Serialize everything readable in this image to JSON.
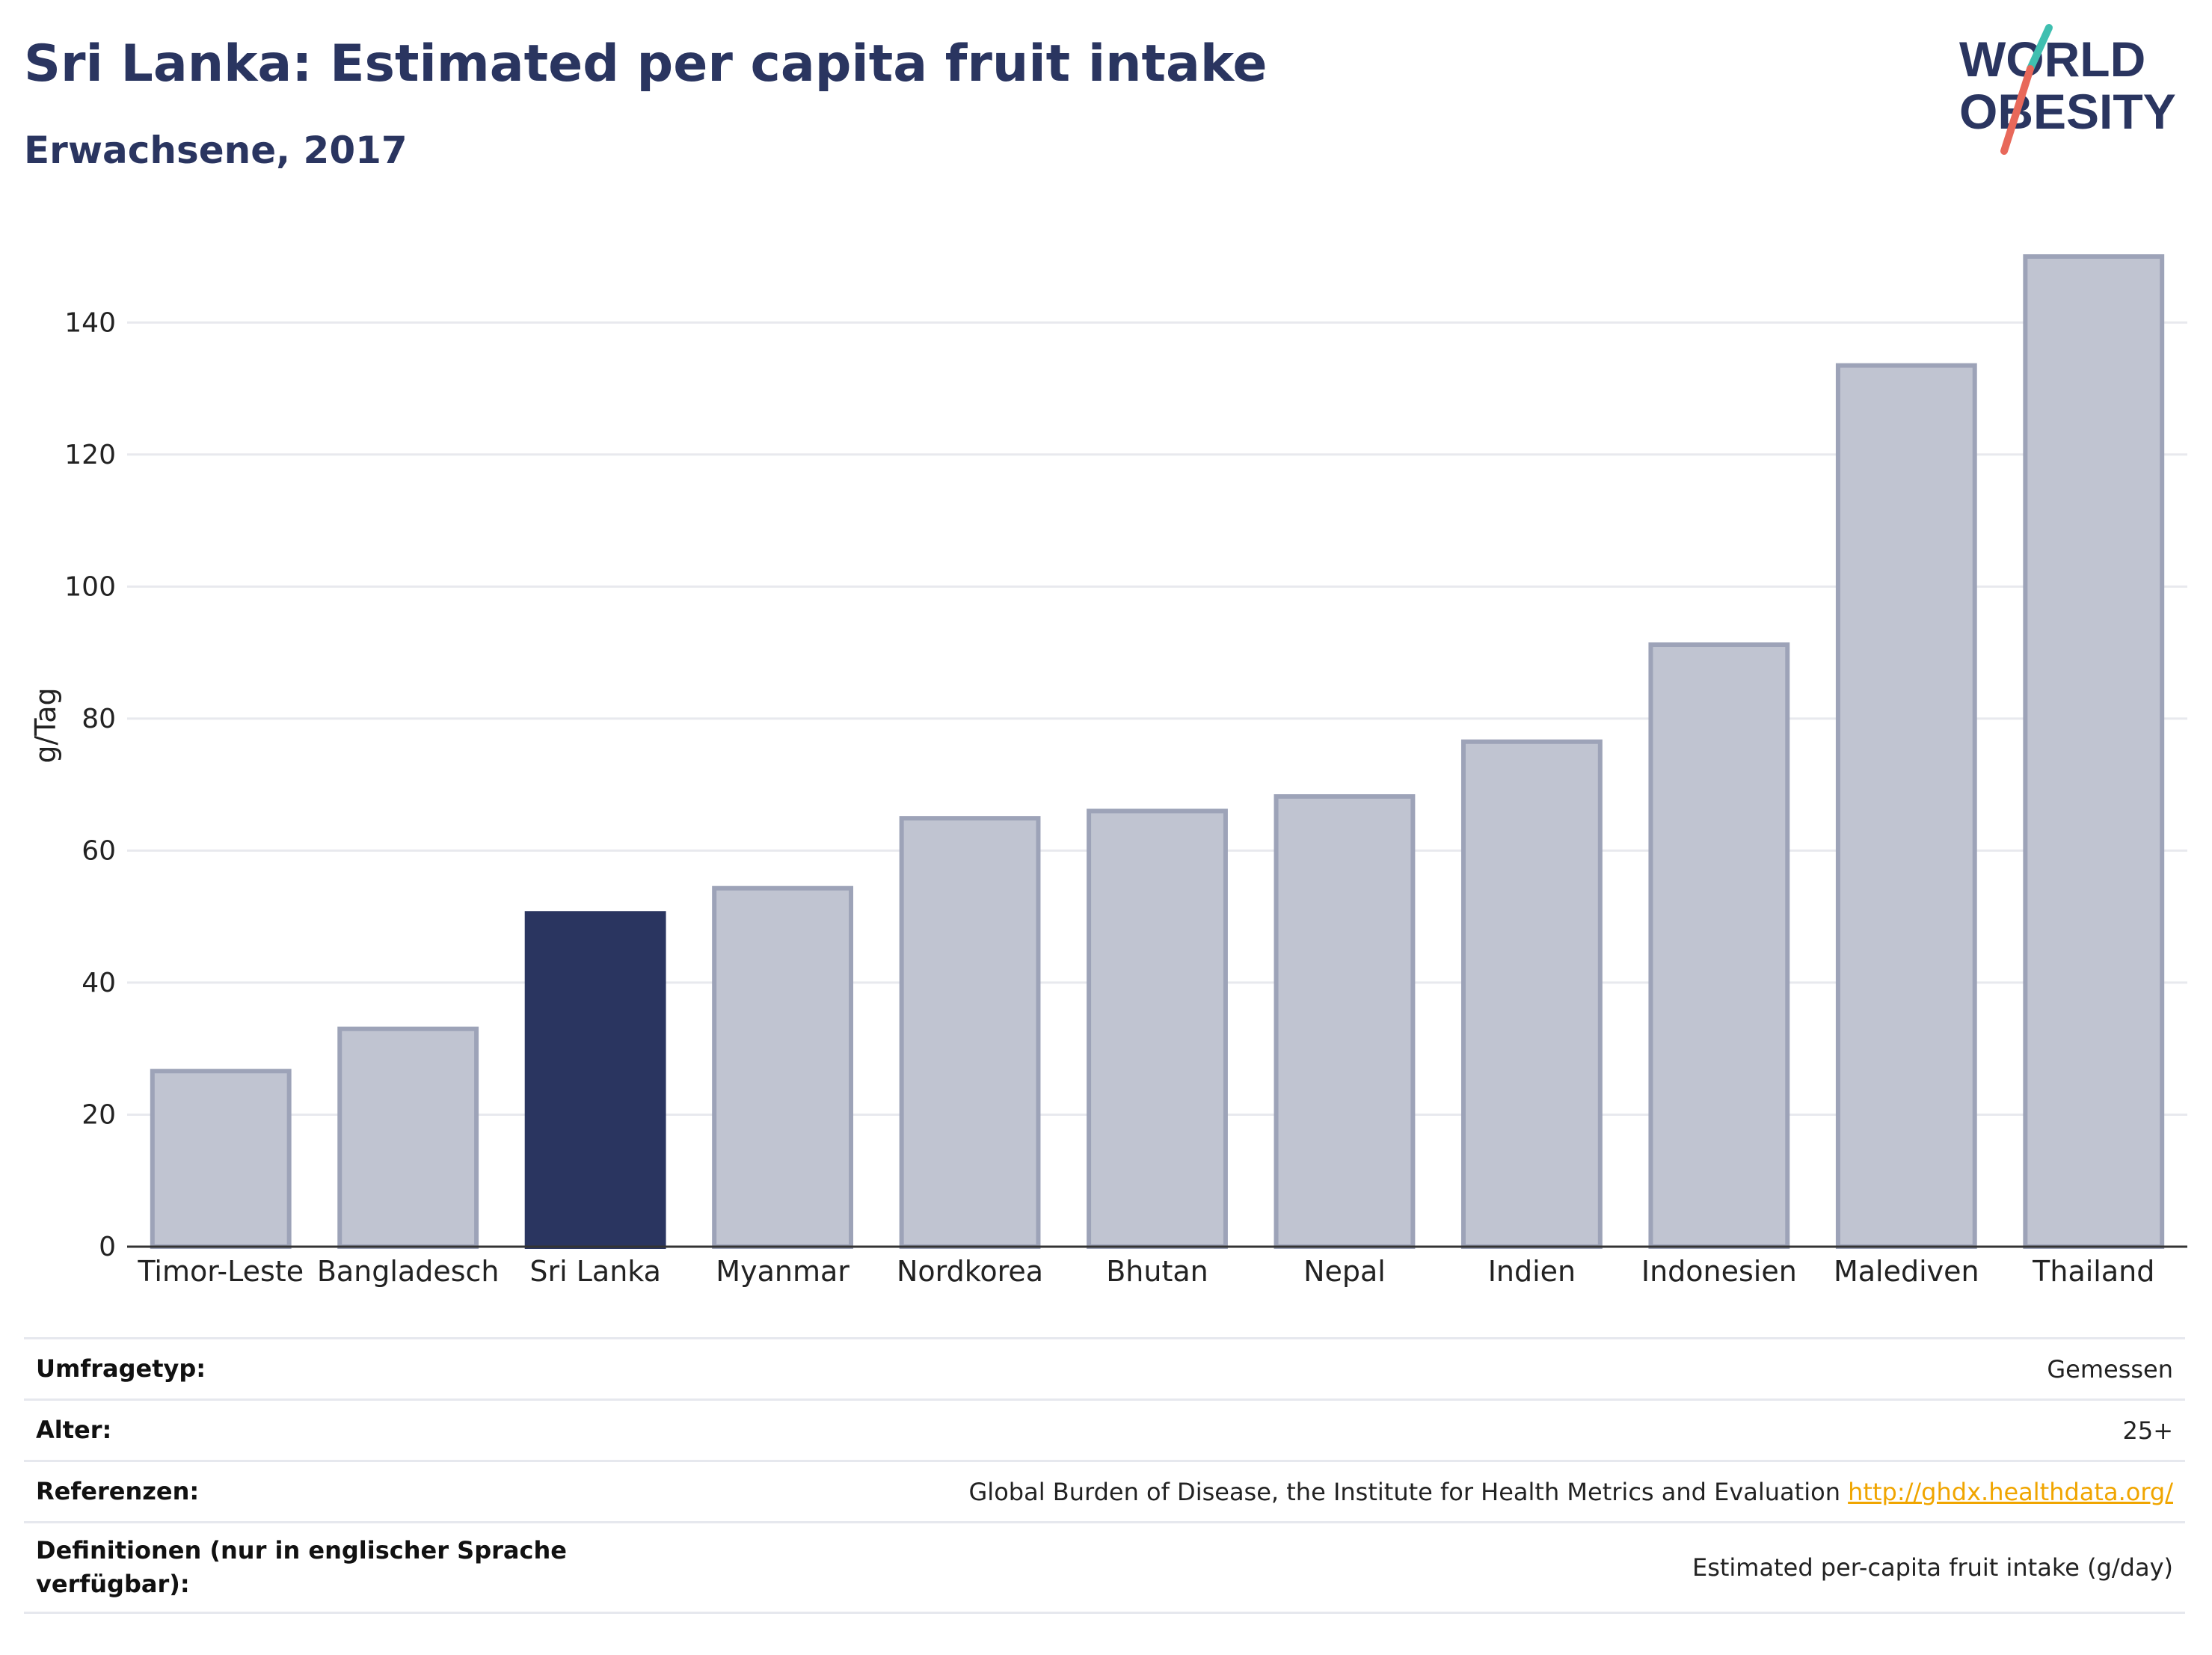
{
  "title": "Sri Lanka: Estimated per capita fruit intake",
  "subtitle": "Erwachsene, 2017",
  "logo": {
    "line1": "WORLD",
    "line2": "OBESITY",
    "colors": {
      "text": "#2a3560",
      "slash_red": "#e8685a",
      "slash_teal": "#3fbfb0"
    }
  },
  "colors": {
    "bar": "#c0c4d1",
    "bar_stroke": "#9da3b8",
    "highlight": "#2a3560",
    "grid": "#e8e9ee",
    "axis": "#333333"
  },
  "chart_data": {
    "type": "bar",
    "categories": [
      "Timor-Leste",
      "Bangladesch",
      "Sri Lanka",
      "Myanmar",
      "Nordkorea",
      "Bhutan",
      "Nepal",
      "Indien",
      "Indonesien",
      "Malediven",
      "Thailand"
    ],
    "values": [
      26.6,
      33.0,
      50.5,
      54.3,
      64.9,
      66.0,
      68.2,
      76.5,
      91.2,
      133.5,
      150.0
    ],
    "highlight": "Sri Lanka",
    "ylabel": "g/Tag",
    "xlabel": "",
    "ylim": [
      0,
      150
    ],
    "yticks": [
      0,
      20,
      40,
      60,
      80,
      100,
      120,
      140
    ],
    "grid": true
  },
  "meta": {
    "rows": [
      {
        "label": "Umfragetyp:",
        "value": "Gemessen"
      },
      {
        "label": "Alter:",
        "value": "25+"
      },
      {
        "label": "Referenzen:",
        "value": "Global Burden of Disease, the Institute for Health Metrics and Evaluation",
        "link": "http://ghdx.healthdata.org/"
      },
      {
        "label": "Definitionen (nur in englischer Sprache verfügbar):",
        "value": "Estimated per-capita fruit intake (g/day)"
      }
    ]
  }
}
